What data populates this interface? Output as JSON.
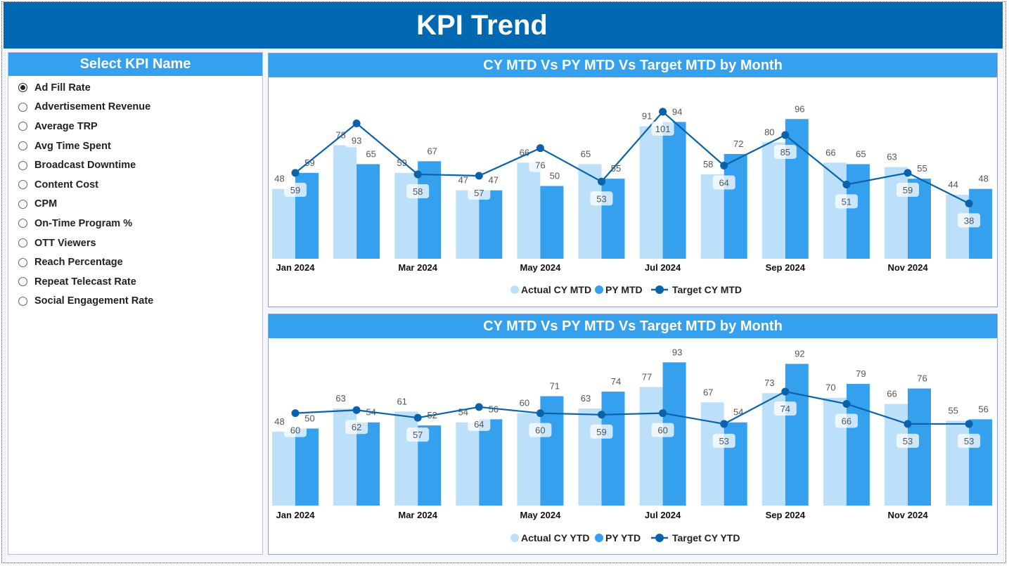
{
  "title": "KPI Trend",
  "slicer": {
    "header": "Select KPI Name",
    "selected": 0,
    "items": [
      "Ad Fill Rate",
      "Advertisement Revenue",
      "Average TRP",
      "Avg Time Spent",
      "Broadcast Downtime",
      "Content Cost",
      "CPM",
      "On-Time Program %",
      "OTT Viewers",
      "Reach Percentage",
      "Repeat Telecast Rate",
      "Social Engagement Rate"
    ]
  },
  "colors": {
    "actual": "#BDE0FA",
    "py": "#35A0EE",
    "target": "#0A63AA",
    "header": "#0067B1"
  },
  "chart_data": [
    {
      "type": "bar+line",
      "title": "CY MTD Vs PY MTD Vs Target MTD by Month",
      "categories": [
        "Jan 2024",
        "Feb 2024",
        "Mar 2024",
        "Apr 2024",
        "May 2024",
        "Jun 2024",
        "Jul 2024",
        "Aug 2024",
        "Sep 2024",
        "Oct 2024",
        "Nov 2024",
        "Dec 2024"
      ],
      "tick_labels": [
        "Jan 2024",
        "",
        "Mar 2024",
        "",
        "May 2024",
        "",
        "Jul 2024",
        "",
        "Sep 2024",
        "",
        "Nov 2024",
        ""
      ],
      "series": [
        {
          "name": "Actual CY MTD",
          "type": "bar",
          "values": [
            48,
            78,
            59,
            47,
            66,
            65,
            91,
            58,
            80,
            66,
            63,
            44
          ]
        },
        {
          "name": "PY MTD",
          "type": "bar",
          "values": [
            59,
            65,
            67,
            47,
            50,
            55,
            94,
            72,
            96,
            65,
            55,
            48
          ]
        },
        {
          "name": "Target CY MTD",
          "type": "line",
          "values": [
            59,
            93,
            58,
            57,
            76,
            53,
            101,
            64,
            85,
            51,
            59,
            38
          ]
        }
      ],
      "legend": "bottom",
      "grid": false
    },
    {
      "type": "bar+line",
      "title": "CY MTD Vs PY MTD Vs Target MTD by Month",
      "categories": [
        "Jan 2024",
        "Feb 2024",
        "Mar 2024",
        "Apr 2024",
        "May 2024",
        "Jun 2024",
        "Jul 2024",
        "Aug 2024",
        "Sep 2024",
        "Oct 2024",
        "Nov 2024",
        "Dec 2024"
      ],
      "tick_labels": [
        "Jan 2024",
        "",
        "Mar 2024",
        "",
        "May 2024",
        "",
        "Jul 2024",
        "",
        "Sep 2024",
        "",
        "Nov 2024",
        ""
      ],
      "series": [
        {
          "name": "Actual CY YTD",
          "type": "bar",
          "values": [
            48,
            63,
            61,
            54,
            60,
            63,
            77,
            67,
            73,
            70,
            66,
            55
          ]
        },
        {
          "name": "PY YTD",
          "type": "bar",
          "values": [
            50,
            54,
            52,
            56,
            71,
            74,
            93,
            54,
            92,
            79,
            76,
            56
          ]
        },
        {
          "name": "Target CY YTD",
          "type": "line",
          "values": [
            60,
            62,
            57,
            64,
            60,
            59,
            60,
            53,
            74,
            66,
            53,
            53
          ]
        }
      ],
      "legend": "bottom",
      "grid": false
    }
  ]
}
